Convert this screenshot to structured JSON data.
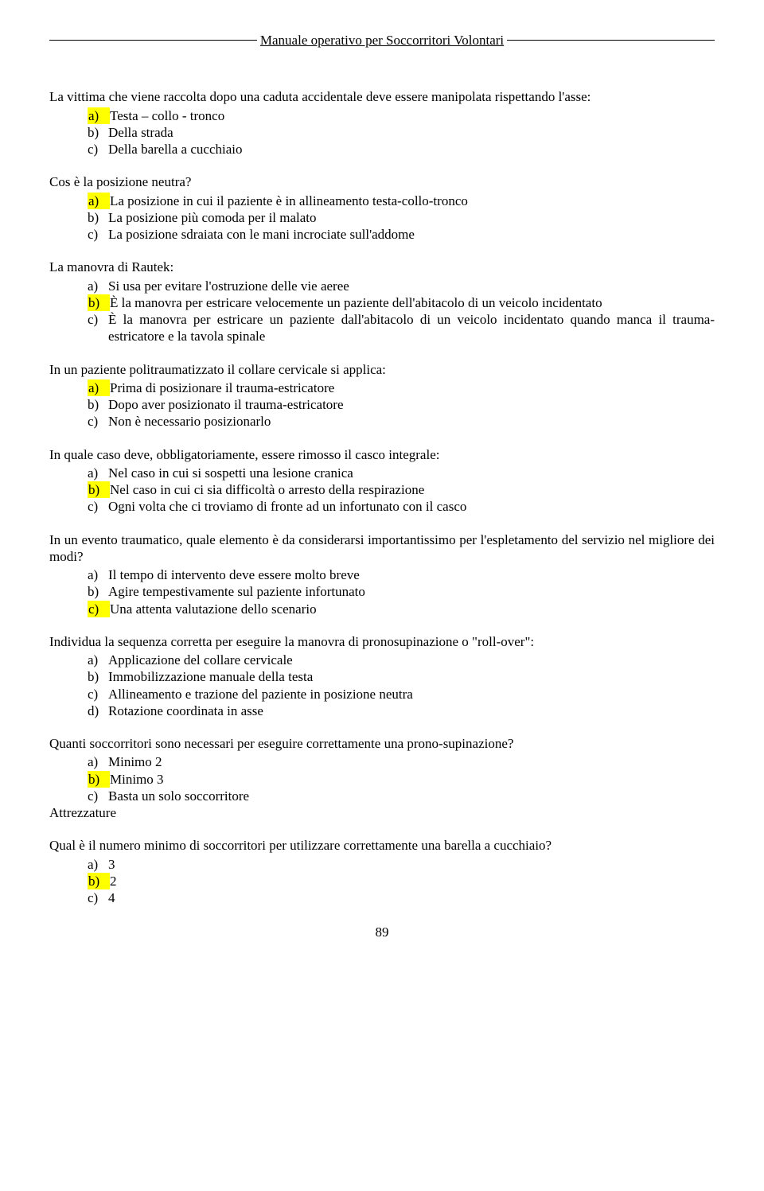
{
  "header": {
    "title": "Manuale operativo per Soccorritori Volontari"
  },
  "page_number": "89",
  "questions": [
    {
      "stem": "La vittima che viene raccolta dopo una caduta accidentale deve essere manipolata rispettando l'asse:",
      "justify": false,
      "options": [
        {
          "letter": "a)",
          "text": "Testa – collo - tronco",
          "highlighted": true
        },
        {
          "letter": "b)",
          "text": "Della strada",
          "highlighted": false
        },
        {
          "letter": "c)",
          "text": "Della barella a cucchiaio",
          "highlighted": false
        }
      ]
    },
    {
      "stem": "Cos è la posizione neutra?",
      "justify": false,
      "options": [
        {
          "letter": "a)",
          "text": "La posizione in cui il paziente è in allineamento testa-collo-tronco",
          "highlighted": true
        },
        {
          "letter": "b)",
          "text": "La posizione più comoda per il malato",
          "highlighted": false
        },
        {
          "letter": "c)",
          "text": "La posizione sdraiata con le mani incrociate sull'addome",
          "highlighted": false
        }
      ]
    },
    {
      "stem": "La manovra di Rautek:",
      "justify": false,
      "options": [
        {
          "letter": "a)",
          "text": "Si usa per evitare l'ostruzione delle vie aeree",
          "highlighted": false
        },
        {
          "letter": "b)",
          "text": "È la manovra per estricare velocemente un paziente dell'abitacolo di un veicolo incidentato",
          "highlighted": true,
          "justify": true
        },
        {
          "letter": "c)",
          "text": "È la manovra per estricare un paziente dall'abitacolo di un veicolo incidentato quando manca il trauma-estricatore e la tavola spinale",
          "highlighted": false,
          "justify": true
        }
      ]
    },
    {
      "stem": "In un paziente politraumatizzato il collare cervicale si applica:",
      "justify": false,
      "options": [
        {
          "letter": "a)",
          "text": "Prima di posizionare il trauma-estricatore",
          "highlighted": true
        },
        {
          "letter": "b)",
          "text": "Dopo aver posizionato il trauma-estricatore",
          "highlighted": false
        },
        {
          "letter": "c)",
          "text": "Non è necessario posizionarlo",
          "highlighted": false
        }
      ]
    },
    {
      "stem": "In quale caso deve, obbligatoriamente, essere rimosso il casco integrale:",
      "justify": false,
      "options": [
        {
          "letter": "a)",
          "text": "Nel caso in cui si sospetti una lesione cranica",
          "highlighted": false
        },
        {
          "letter": "b)",
          "text": "Nel caso in cui ci sia difficoltà o arresto della respirazione",
          "highlighted": true
        },
        {
          "letter": "c)",
          "text": "Ogni volta che ci troviamo di fronte ad un infortunato con il casco",
          "highlighted": false
        }
      ]
    },
    {
      "stem": "In un evento traumatico, quale elemento è da considerarsi importantissimo per l'espletamento del servizio nel migliore dei modi?",
      "justify": true,
      "options": [
        {
          "letter": "a)",
          "text": "Il tempo di intervento deve essere molto breve",
          "highlighted": false
        },
        {
          "letter": "b)",
          "text": "Agire tempestivamente sul paziente infortunato",
          "highlighted": false
        },
        {
          "letter": "c)",
          "text": "Una attenta valutazione dello scenario",
          "highlighted": true
        }
      ]
    },
    {
      "stem": "Individua la sequenza corretta per eseguire la manovra di pronosupinazione o \"roll-over\":",
      "justify": false,
      "options": [
        {
          "letter": "a)",
          "text": "Applicazione del collare cervicale",
          "highlighted": false
        },
        {
          "letter": "b)",
          "text": "Immobilizzazione manuale della testa",
          "highlighted": false
        },
        {
          "letter": "c)",
          "text": "Allineamento e trazione del paziente in posizione neutra",
          "highlighted": false
        },
        {
          "letter": "d)",
          "text": "Rotazione coordinata in asse",
          "highlighted": false
        }
      ]
    },
    {
      "stem": "Quanti soccorritori sono necessari per eseguire correttamente una prono-supinazione?",
      "justify": false,
      "options": [
        {
          "letter": "a)",
          "text": "Minimo 2",
          "highlighted": false
        },
        {
          "letter": "b)",
          "text": "Minimo 3",
          "highlighted": true
        },
        {
          "letter": "c)",
          "text": "Basta un solo soccorritore",
          "highlighted": false
        }
      ],
      "trailing_heading": "Attrezzature"
    },
    {
      "stem": "Qual è il numero minimo di soccorritori per utilizzare correttamente una barella a cucchiaio?",
      "justify": false,
      "options": [
        {
          "letter": "a)",
          "text": "3",
          "highlighted": false
        },
        {
          "letter": "b)",
          "text": "2",
          "highlighted": true
        },
        {
          "letter": "c)",
          "text": "4",
          "highlighted": false
        }
      ]
    }
  ]
}
